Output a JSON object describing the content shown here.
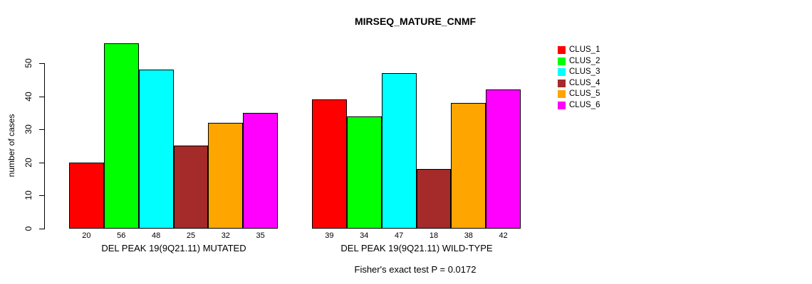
{
  "title": "MIRSEQ_MATURE_CNMF",
  "footer": "Fisher's exact test P = 0.0172",
  "chart_data": {
    "type": "bar",
    "title": "MIRSEQ_MATURE_CNMF",
    "ylabel": "number of cases",
    "xlabel": "",
    "yticks": [
      0,
      10,
      20,
      30,
      40,
      50
    ],
    "ylim": [
      0,
      56
    ],
    "grid": false,
    "legend_position": "right",
    "categories": [
      "DEL PEAK 19(9Q21.11) MUTATED",
      "DEL PEAK 19(9Q21.11) WILD-TYPE"
    ],
    "series": [
      {
        "name": "CLUS_1",
        "color": "#FF0000",
        "values": [
          20,
          39
        ]
      },
      {
        "name": "CLUS_2",
        "color": "#00FF00",
        "values": [
          56,
          34
        ]
      },
      {
        "name": "CLUS_3",
        "color": "#00FFFF",
        "values": [
          48,
          47
        ]
      },
      {
        "name": "CLUS_4",
        "color": "#A52A2A",
        "values": [
          25,
          18
        ]
      },
      {
        "name": "CLUS_5",
        "color": "#FFA500",
        "values": [
          32,
          38
        ]
      },
      {
        "name": "CLUS_6",
        "color": "#FF00FF",
        "values": [
          35,
          42
        ]
      }
    ],
    "bar_value_labels_shown": true,
    "annotation": "Fisher's exact test P = 0.0172"
  }
}
